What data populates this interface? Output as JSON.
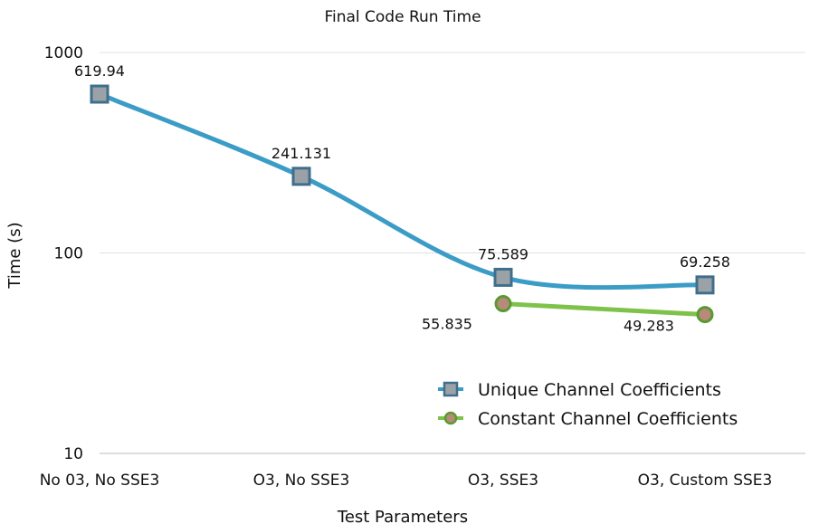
{
  "chart_data": {
    "type": "line",
    "title": "Final Code Run Time",
    "xlabel": "Test Parameters",
    "ylabel": "Time (s)",
    "yscale": "log",
    "ylim": [
      10,
      1000
    ],
    "yticks": [
      "10",
      "100",
      "1000"
    ],
    "categories": [
      "No 03, No SSE3",
      "O3, No SSE3",
      "O3, SSE3",
      "O3, Custom SSE3"
    ],
    "legend_position": "bottom-right",
    "series": [
      {
        "name": "Unique Channel Coefficients",
        "values": [
          619.94,
          241.131,
          75.589,
          69.258
        ],
        "labels": [
          "619.94",
          "241.131",
          "75.589",
          "69.258"
        ],
        "line_color": "#3b9cc6",
        "marker": "square",
        "marker_fill": "#9aa2a8",
        "marker_edge": "#3f6f8c"
      },
      {
        "name": "Constant Channel Coefficients",
        "values": [
          null,
          null,
          55.835,
          49.283
        ],
        "labels": [
          "",
          "",
          "55.835",
          "49.283"
        ],
        "line_color": "#7ec24a",
        "marker": "circle",
        "marker_fill": "#b88a7a",
        "marker_edge": "#5a9a32"
      }
    ]
  }
}
